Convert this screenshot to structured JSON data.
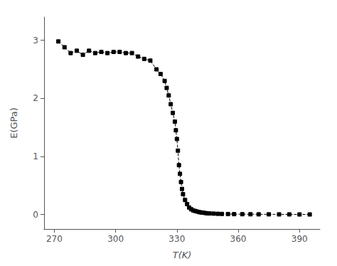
{
  "chart_data": {
    "type": "line",
    "xlabel": "T(K)",
    "ylabel": "E(GPa)",
    "xlim": [
      265,
      400
    ],
    "ylim": [
      -0.25,
      3.4
    ],
    "xticks": [
      270,
      300,
      330,
      360,
      390
    ],
    "yticks": [
      0,
      1,
      2,
      3
    ],
    "grid": false,
    "color": "black",
    "marker": "square",
    "line_style": "dashed",
    "x": [
      272,
      275,
      278,
      281,
      284,
      287,
      290,
      293,
      296,
      299,
      302,
      305,
      308,
      311,
      314,
      317,
      320,
      322,
      324,
      325,
      326,
      327,
      328,
      329,
      329.5,
      330,
      330.5,
      331,
      331.5,
      332,
      332.5,
      333,
      334,
      335,
      336,
      337,
      338,
      339,
      340,
      341,
      342,
      343,
      344,
      345,
      346,
      348,
      350,
      352,
      355,
      358,
      362,
      366,
      370,
      375,
      380,
      385,
      390,
      395
    ],
    "values": [
      2.98,
      2.88,
      2.78,
      2.82,
      2.75,
      2.82,
      2.78,
      2.8,
      2.78,
      2.8,
      2.8,
      2.78,
      2.78,
      2.72,
      2.68,
      2.65,
      2.5,
      2.42,
      2.3,
      2.18,
      2.05,
      1.9,
      1.75,
      1.6,
      1.45,
      1.3,
      1.1,
      0.85,
      0.7,
      0.56,
      0.44,
      0.35,
      0.25,
      0.18,
      0.12,
      0.09,
      0.07,
      0.06,
      0.05,
      0.04,
      0.035,
      0.03,
      0.025,
      0.02,
      0.018,
      0.015,
      0.012,
      0.01,
      0.008,
      0.006,
      0.005,
      0.004,
      0.003,
      0.003,
      0.002,
      0.002,
      0.001,
      0.001
    ]
  }
}
